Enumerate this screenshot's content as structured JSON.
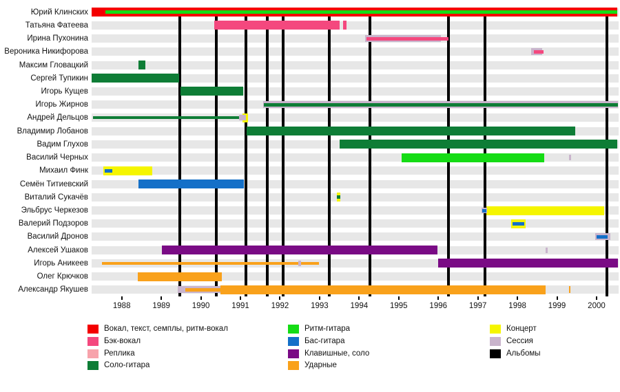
{
  "chart_data": {
    "type": "gantt",
    "title": "",
    "x_axis": {
      "years": [
        "1988",
        "1989",
        "1990",
        "1991",
        "1992",
        "1993",
        "1994",
        "1995",
        "1996",
        "1997",
        "1998",
        "1999",
        "2000"
      ],
      "range": [
        1987.2,
        2000.58
      ]
    },
    "roles": {
      "vocal": {
        "label": "Вокал, текст, семплы, ритм-вокал",
        "color": "#f40000"
      },
      "backing": {
        "label": "Бэк-вокал",
        "color": "#f4487e"
      },
      "replica": {
        "label": "Реплика",
        "color": "#f7a3ab"
      },
      "solo_guitar": {
        "label": "Соло-гитара",
        "color": "#0e7d36"
      },
      "rhythm_guitar": {
        "label": "Ритм-гитара",
        "color": "#15dc15"
      },
      "bass": {
        "label": "Бас-гитара",
        "color": "#1470c8"
      },
      "keys": {
        "label": "Клавишные, соло",
        "color": "#7a0b85"
      },
      "drums": {
        "label": "Ударные",
        "color": "#f9a11b"
      },
      "concert": {
        "label": "Концерт",
        "color": "#f5f500"
      },
      "session": {
        "label": "Сессия",
        "color": "#c9b4cc"
      },
      "albums": {
        "label": "Альбомы",
        "color": "#000000"
      }
    },
    "legend_columns": [
      [
        "vocal",
        "backing",
        "replica",
        "solo_guitar"
      ],
      [
        "rhythm_guitar",
        "bass",
        "keys",
        "drums"
      ],
      [
        "concert",
        "session",
        "albums"
      ]
    ],
    "album_years": [
      1989.47,
      1990.39,
      1991.14,
      1991.68,
      1992.08,
      1993.25,
      1994.27,
      1996.26,
      1997.18,
      2000.26
    ],
    "members": [
      {
        "name": "Юрий Клинских",
        "segments": [
          {
            "role": "vocal",
            "start": 1987.24,
            "end": 2000.52,
            "size": "full"
          },
          {
            "role": "rhythm_guitar",
            "start": 1987.59,
            "end": 2000.52,
            "size": "mid"
          }
        ]
      },
      {
        "name": "Татьяна Фатеева",
        "segments": [
          {
            "role": "backing",
            "start": 1990.34,
            "end": 1993.51,
            "size": "full"
          },
          {
            "role": "backing",
            "start": 1993.6,
            "end": 1993.68,
            "size": "full"
          }
        ]
      },
      {
        "name": "Ирина Пухонина",
        "segments": [
          {
            "role": "session",
            "start": 1994.15,
            "end": 1996.07,
            "size": "band"
          },
          {
            "role": "backing",
            "start": 1994.19,
            "end": 1996.26,
            "size": "mid"
          }
        ]
      },
      {
        "name": "Вероника Никифорова",
        "segments": [
          {
            "role": "session",
            "start": 1998.35,
            "end": 1998.62,
            "size": "band"
          },
          {
            "role": "backing",
            "start": 1998.42,
            "end": 1998.66,
            "size": "mid"
          }
        ]
      },
      {
        "name": "Максим Гловацкий",
        "segments": [
          {
            "role": "solo_guitar",
            "start": 1988.42,
            "end": 1988.6,
            "size": "full"
          }
        ]
      },
      {
        "name": "Сергей Тупикин",
        "segments": [
          {
            "role": "solo_guitar",
            "start": 1987.24,
            "end": 1989.45,
            "size": "full"
          }
        ]
      },
      {
        "name": "Игорь Кущев",
        "segments": [
          {
            "role": "solo_guitar",
            "start": 1989.48,
            "end": 1991.07,
            "size": "full"
          }
        ]
      },
      {
        "name": "Игорь Жирнов",
        "segments": [
          {
            "role": "session",
            "start": 1991.57,
            "end": 2000.54,
            "size": "band"
          },
          {
            "role": "solo_guitar",
            "start": 1991.6,
            "end": 2000.54,
            "size": "mid"
          }
        ]
      },
      {
        "name": "Андрей Дельцов",
        "segments": [
          {
            "role": "concert",
            "start": 1991.05,
            "end": 1991.19,
            "size": "full"
          },
          {
            "role": "solo_guitar",
            "start": 1987.27,
            "end": 1991.0,
            "size": "line"
          },
          {
            "role": "session",
            "start": 1990.96,
            "end": 1991.14,
            "size": "small"
          }
        ]
      },
      {
        "name": "Владимир Лобанов",
        "segments": [
          {
            "role": "solo_guitar",
            "start": 1991.16,
            "end": 1999.46,
            "size": "full"
          }
        ]
      },
      {
        "name": "Вадим Глухов",
        "segments": [
          {
            "role": "solo_guitar",
            "start": 1993.51,
            "end": 2000.52,
            "size": "full"
          }
        ]
      },
      {
        "name": "Василий Черных",
        "segments": [
          {
            "role": "rhythm_guitar",
            "start": 1995.07,
            "end": 1998.68,
            "size": "full"
          },
          {
            "role": "session",
            "start": 1999.3,
            "end": 1999.36,
            "size": "small"
          }
        ]
      },
      {
        "name": "Михаил Финк",
        "segments": [
          {
            "role": "concert",
            "start": 1987.53,
            "end": 1988.77,
            "size": "full"
          },
          {
            "role": "bass",
            "start": 1987.57,
            "end": 1987.76,
            "size": "mid"
          }
        ]
      },
      {
        "name": "Семён Титиевский",
        "segments": [
          {
            "role": "bass",
            "start": 1988.42,
            "end": 1991.09,
            "size": "full"
          }
        ]
      },
      {
        "name": "Виталий Сукачёв",
        "segments": [
          {
            "role": "concert",
            "start": 1993.44,
            "end": 1993.52,
            "size": "full"
          },
          {
            "role": "solo_guitar",
            "start": 1993.44,
            "end": 1993.52,
            "size": "mid"
          }
        ]
      },
      {
        "name": "Эльбрус Черкезов",
        "segments": [
          {
            "role": "concert",
            "start": 1997.21,
            "end": 2000.2,
            "size": "full"
          },
          {
            "role": "session",
            "start": 1997.09,
            "end": 1997.23,
            "size": "small"
          },
          {
            "role": "bass",
            "start": 1997.11,
            "end": 1997.21,
            "size": "mid"
          }
        ]
      },
      {
        "name": "Валерий Подзоров",
        "segments": [
          {
            "role": "concert",
            "start": 1997.84,
            "end": 1998.21,
            "size": "full"
          },
          {
            "role": "bass",
            "start": 1997.88,
            "end": 1998.17,
            "size": "mid"
          }
        ]
      },
      {
        "name": "Василий Дронов",
        "segments": [
          {
            "role": "session",
            "start": 1999.96,
            "end": 2000.35,
            "size": "band"
          },
          {
            "role": "bass",
            "start": 2000.0,
            "end": 2000.28,
            "size": "mid"
          }
        ]
      },
      {
        "name": "Алексей Ушаков",
        "segments": [
          {
            "role": "keys",
            "start": 1989.01,
            "end": 1995.98,
            "size": "full"
          },
          {
            "role": "session",
            "start": 1998.71,
            "end": 1998.77,
            "size": "small"
          }
        ]
      },
      {
        "name": "Игорь Аникеев",
        "segments": [
          {
            "role": "drums",
            "start": 1987.5,
            "end": 1992.98,
            "size": "line"
          },
          {
            "role": "session",
            "start": 1992.46,
            "end": 1992.53,
            "size": "small"
          },
          {
            "role": "keys",
            "start": 1996.0,
            "end": 2000.54,
            "size": "full"
          }
        ]
      },
      {
        "name": "Олег Крючков",
        "segments": [
          {
            "role": "drums",
            "start": 1988.41,
            "end": 1990.53,
            "size": "full"
          }
        ]
      },
      {
        "name": "Александр Якушев",
        "segments": [
          {
            "role": "session",
            "start": 1989.42,
            "end": 1990.49,
            "size": "band"
          },
          {
            "role": "drums",
            "start": 1989.6,
            "end": 1990.49,
            "size": "mid"
          },
          {
            "role": "drums",
            "start": 1990.49,
            "end": 1998.71,
            "size": "full"
          },
          {
            "role": "drums",
            "start": 1999.3,
            "end": 1999.34,
            "size": "band"
          }
        ]
      }
    ]
  }
}
